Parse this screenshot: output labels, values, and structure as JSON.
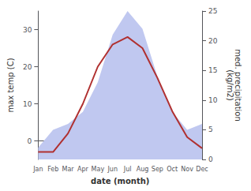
{
  "chart_data": {
    "type": "line",
    "categories": [
      "Jan",
      "Feb",
      "Mar",
      "Apr",
      "May",
      "Jun",
      "Jul",
      "Aug",
      "Sep",
      "Oct",
      "Nov",
      "Dec"
    ],
    "series": [
      {
        "type": "area",
        "color": "#c0c8f0",
        "axis": "y2",
        "values": [
          2,
          5,
          6,
          8,
          13,
          21,
          25,
          22,
          14,
          8,
          5,
          6
        ]
      },
      {
        "type": "line",
        "color": "#b03030",
        "values": [
          -3,
          -3,
          2,
          10,
          20,
          26,
          28,
          25,
          17,
          8,
          1,
          -2
        ]
      }
    ],
    "xlabel": "date (month)",
    "ylabel": "max temp (C)",
    "y2label": "med. precipitation\n(kg/m2)",
    "ylim": [
      -5,
      35
    ],
    "yticks": [
      0,
      10,
      20,
      30
    ],
    "y2lim": [
      0,
      25
    ],
    "y2ticks": [
      0,
      5,
      10,
      15,
      20,
      25
    ],
    "grid": false
  }
}
